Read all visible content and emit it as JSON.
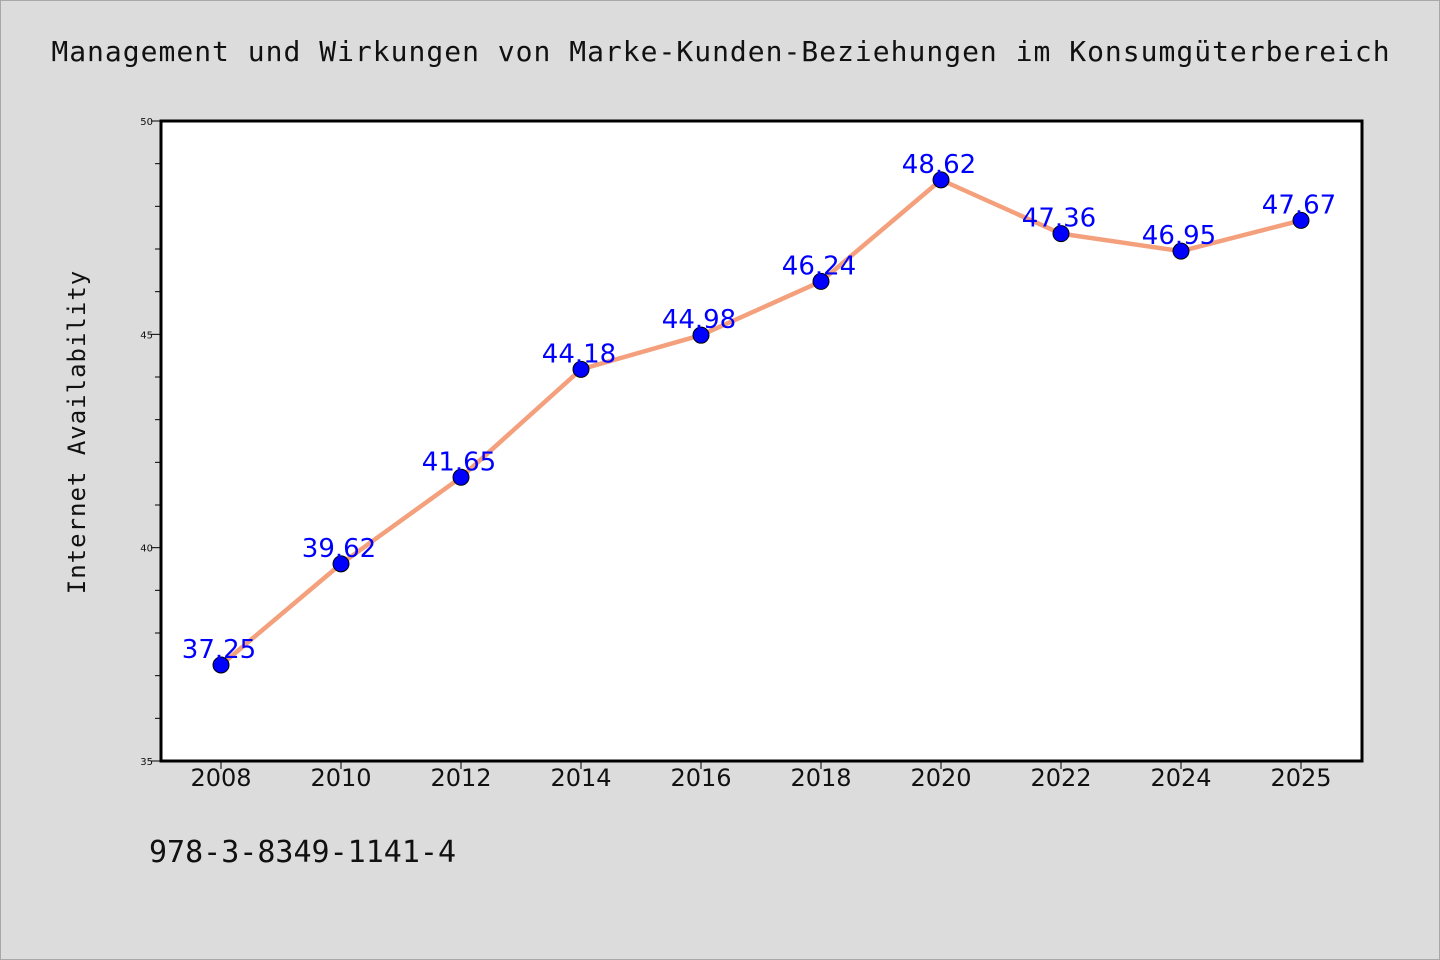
{
  "chart_data": {
    "type": "line",
    "title": "Management und Wirkungen von Marke-Kunden-Beziehungen im Konsumgüterbereich",
    "xlabel": "",
    "ylabel": "Internet Availability",
    "categories": [
      "2008",
      "2010",
      "2012",
      "2014",
      "2016",
      "2018",
      "2020",
      "2022",
      "2024",
      "2025"
    ],
    "series": [
      {
        "values": [
          37.25,
          39.62,
          41.65,
          44.18,
          44.98,
          46.24,
          48.62,
          47.36,
          46.95,
          47.67
        ],
        "line_color": "#f4a07c",
        "marker_color": "#0000ff"
      }
    ],
    "data_labels": [
      "37.25",
      "39.62",
      "41.65",
      "44.18",
      "44.98",
      "46.24",
      "48.62",
      "47.36",
      "46.95",
      "47.67"
    ],
    "ylim": [
      35,
      50
    ],
    "yticks": [
      35,
      40,
      45,
      50
    ],
    "grid": false,
    "legend": "none"
  },
  "footer": {
    "code": "978-3-8349-1141-4"
  },
  "colors": {
    "background": "#dcdcdc",
    "plot_background": "#ffffff",
    "line": "#f4a07c",
    "marker": "#0000ff",
    "label": "#0000ff"
  }
}
